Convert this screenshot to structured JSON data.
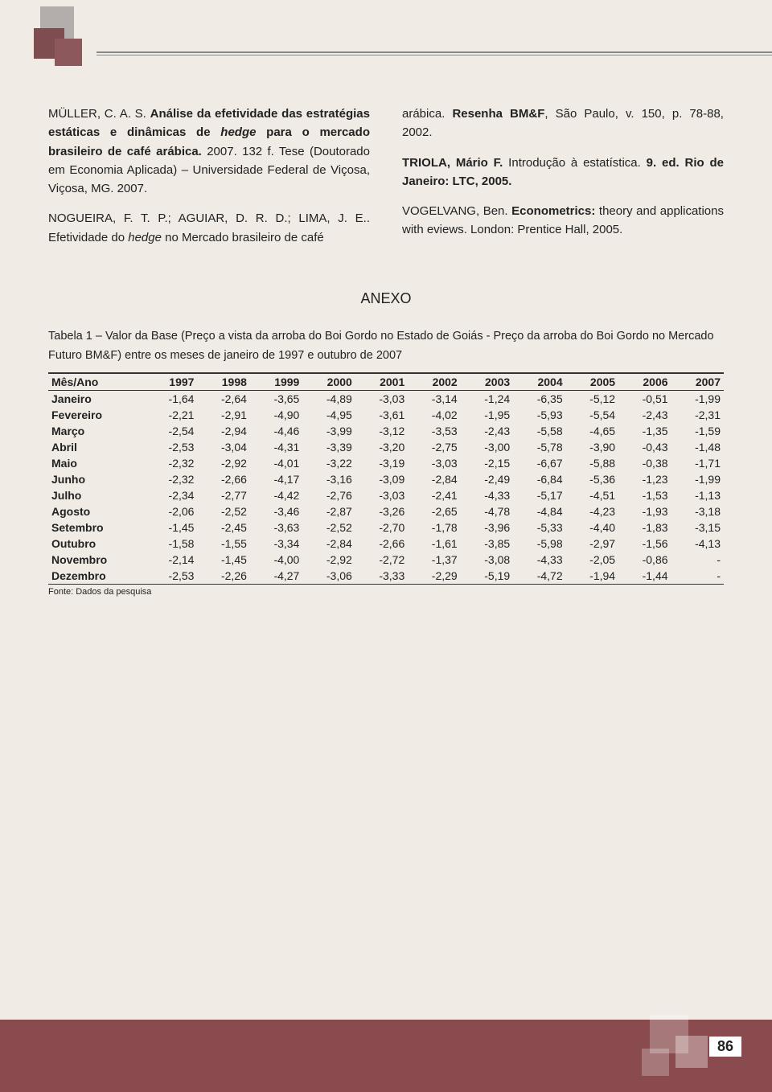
{
  "references": {
    "left": [
      {
        "html": "MÜLLER, C. A. S. <b>Análise da efetividade das estratégias estáticas e dinâmicas de <i>hedge</i> para o mercado brasileiro de café arábica.</b> 2007. 132 f. Tese (Doutorado em Economia Aplicada) – Universidade Federal de Viçosa, Viçosa, MG. 2007."
      },
      {
        "html": "NOGUEIRA, F. T. P.; AGUIAR, D. R. D.; LIMA, J. E.. Efetividade do <i>hedge</i> no Mercado brasileiro de café"
      }
    ],
    "right": [
      {
        "html": "arábica. <b>Resenha BM&F</b>, São Paulo, v. 150, p. 78-88, 2002."
      },
      {
        "html": "<b>TRIOLA, Mário F.</b> Introdução à estatística. <b>9. ed. Rio de Janeiro: LTC, 2005.</b>"
      },
      {
        "html": "VOGELVANG, Ben. <b>Econometrics:</b> theory and applications with eviews. London: Prentice Hall, 2005."
      }
    ]
  },
  "anexo_heading": "ANEXO",
  "table": {
    "caption": "Tabela 1 – Valor da Base (Preço a vista da arroba do Boi Gordo no Estado de Goiás - Preço da arroba do Boi Gordo no Mercado Futuro BM&F) entre os meses de janeiro de 1997 e outubro de 2007",
    "row_header": "Mês/Ano",
    "years": [
      "1997",
      "1998",
      "1999",
      "2000",
      "2001",
      "2002",
      "2003",
      "2004",
      "2005",
      "2006",
      "2007"
    ],
    "rows": [
      {
        "label": "Janeiro",
        "v": [
          "-1,64",
          "-2,64",
          "-3,65",
          "-4,89",
          "-3,03",
          "-3,14",
          "-1,24",
          "-6,35",
          "-5,12",
          "-0,51",
          "-1,99"
        ]
      },
      {
        "label": "Fevereiro",
        "v": [
          "-2,21",
          "-2,91",
          "-4,90",
          "-4,95",
          "-3,61",
          "-4,02",
          "-1,95",
          "-5,93",
          "-5,54",
          "-2,43",
          "-2,31"
        ]
      },
      {
        "label": "Março",
        "v": [
          "-2,54",
          "-2,94",
          "-4,46",
          "-3,99",
          "-3,12",
          "-3,53",
          "-2,43",
          "-5,58",
          "-4,65",
          "-1,35",
          "-1,59"
        ]
      },
      {
        "label": "Abril",
        "v": [
          "-2,53",
          "-3,04",
          "-4,31",
          "-3,39",
          "-3,20",
          "-2,75",
          "-3,00",
          "-5,78",
          "-3,90",
          "-0,43",
          "-1,48"
        ]
      },
      {
        "label": "Maio",
        "v": [
          "-2,32",
          "-2,92",
          "-4,01",
          "-3,22",
          "-3,19",
          "-3,03",
          "-2,15",
          "-6,67",
          "-5,88",
          "-0,38",
          "-1,71"
        ]
      },
      {
        "label": "Junho",
        "v": [
          "-2,32",
          "-2,66",
          "-4,17",
          "-3,16",
          "-3,09",
          "-2,84",
          "-2,49",
          "-6,84",
          "-5,36",
          "-1,23",
          "-1,99"
        ]
      },
      {
        "label": "Julho",
        "v": [
          "-2,34",
          "-2,77",
          "-4,42",
          "-2,76",
          "-3,03",
          "-2,41",
          "-4,33",
          "-5,17",
          "-4,51",
          "-1,53",
          "-1,13"
        ]
      },
      {
        "label": "Agosto",
        "v": [
          "-2,06",
          "-2,52",
          "-3,46",
          "-2,87",
          "-3,26",
          "-2,65",
          "-4,78",
          "-4,84",
          "-4,23",
          "-1,93",
          "-3,18"
        ]
      },
      {
        "label": "Setembro",
        "v": [
          "-1,45",
          "-2,45",
          "-3,63",
          "-2,52",
          "-2,70",
          "-1,78",
          "-3,96",
          "-5,33",
          "-4,40",
          "-1,83",
          "-3,15"
        ]
      },
      {
        "label": "Outubro",
        "v": [
          "-1,58",
          "-1,55",
          "-3,34",
          "-2,84",
          "-2,66",
          "-1,61",
          "-3,85",
          "-5,98",
          "-2,97",
          "-1,56",
          "-4,13"
        ]
      },
      {
        "label": "Novembro",
        "v": [
          "-2,14",
          "-1,45",
          "-4,00",
          "-2,92",
          "-2,72",
          "-1,37",
          "-3,08",
          "-4,33",
          "-2,05",
          "-0,86",
          "-"
        ]
      },
      {
        "label": "Dezembro",
        "v": [
          "-2,53",
          "-2,26",
          "-4,27",
          "-3,06",
          "-3,33",
          "-2,29",
          "-5,19",
          "-4,72",
          "-1,94",
          "-1,44",
          "-"
        ]
      }
    ],
    "source": "Fonte: Dados da pesquisa"
  },
  "page_number": "86",
  "colors": {
    "page_bg": "#f0ebe5",
    "footer_bg": "#8a4b4e",
    "corner_sq_light": "#b3adab",
    "corner_sq_dark": "#7d4d4f"
  }
}
